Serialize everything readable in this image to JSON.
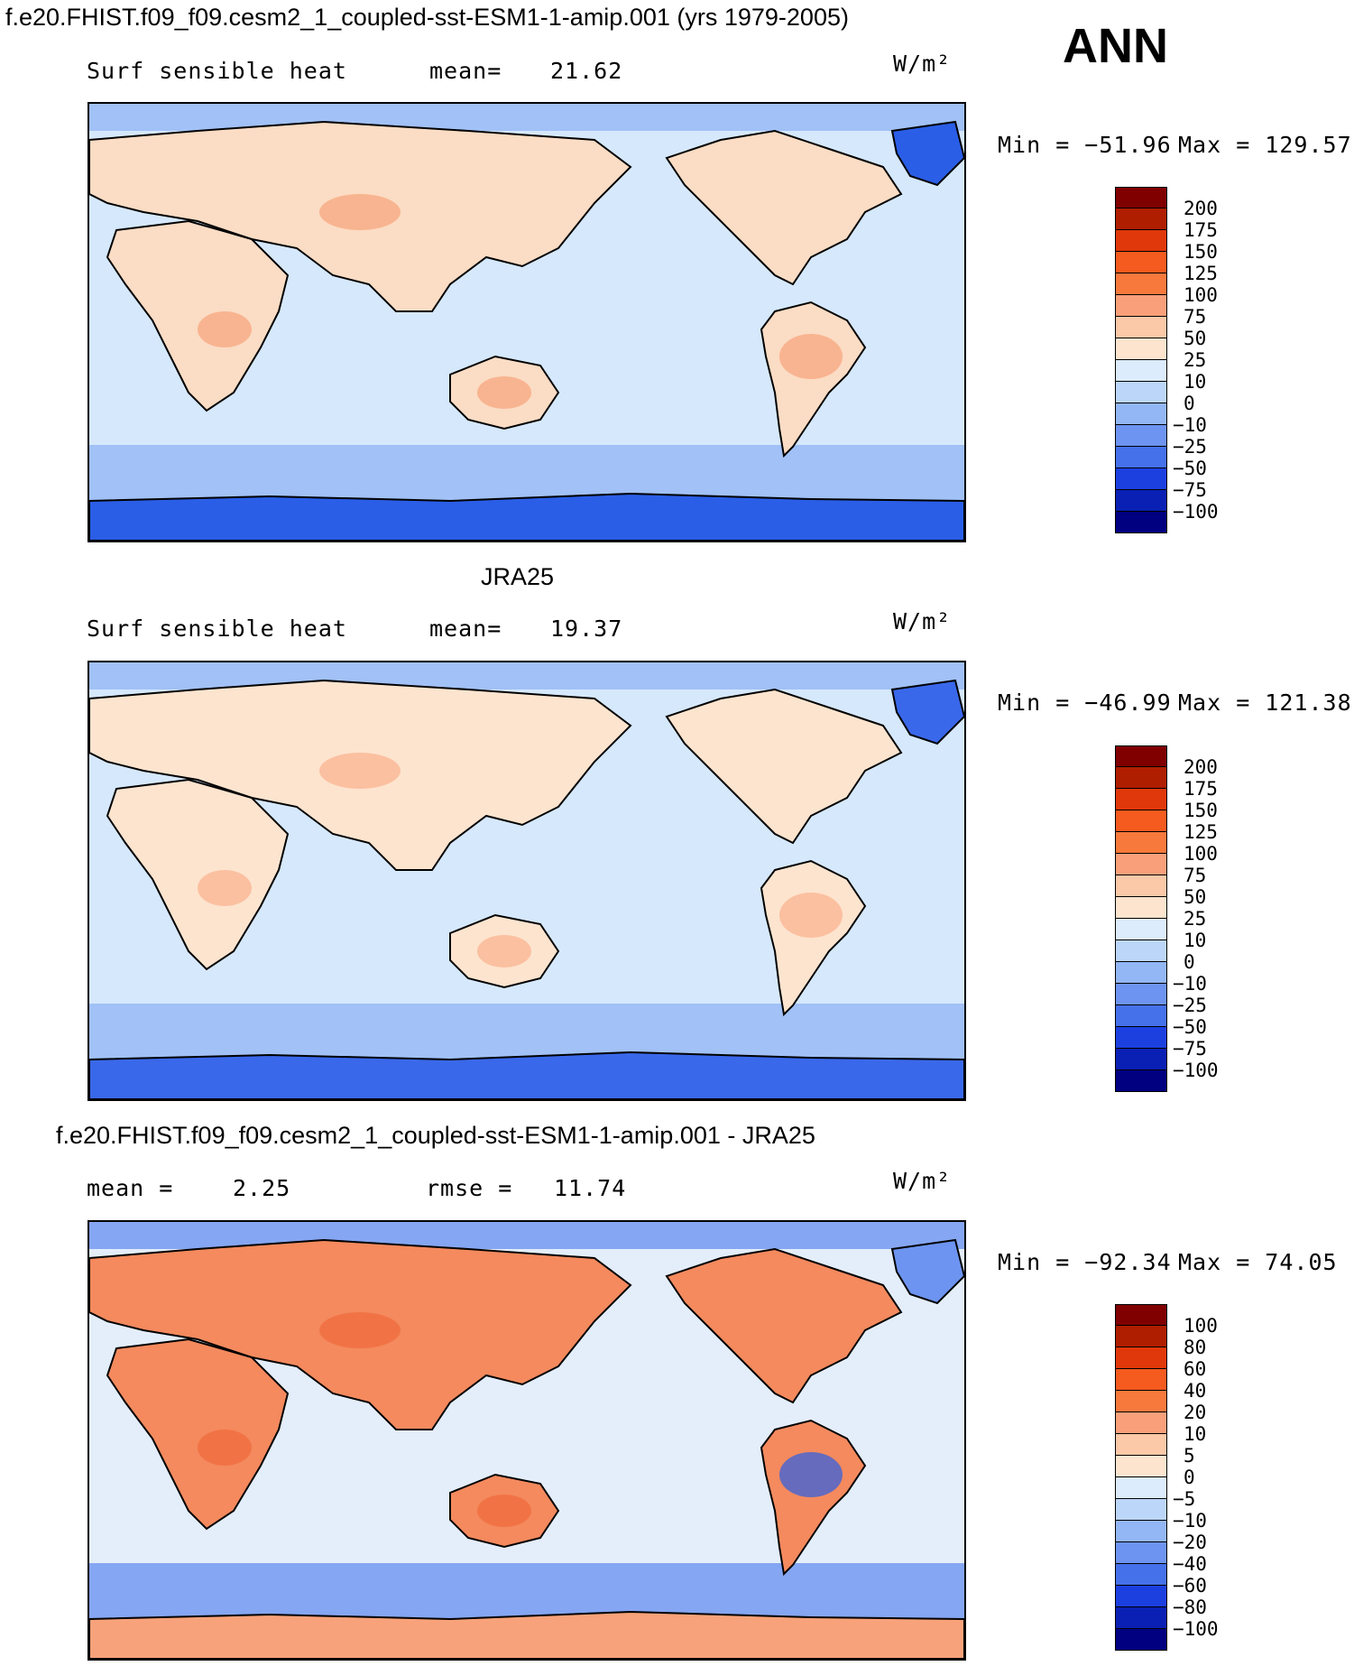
{
  "header": {
    "case_title": "f.e20.FHIST.f09_f09.cesm2_1_coupled-sst-ESM1-1-amip.001 (yrs 1979-2005)",
    "season": "ANN"
  },
  "panels": [
    {
      "title": "",
      "left_label": "Surf  sensible  heat",
      "stat_label": "mean=",
      "stat_value": "21.62",
      "stat2_label": "",
      "stat2_value": "",
      "units": "W/m²",
      "min_label": "Min  =  −51.96",
      "max_label": "Max  =  129.57",
      "colorbar": {
        "labels": [
          "200",
          "175",
          "150",
          "125",
          "100",
          "75",
          "50",
          "25",
          "10",
          "0",
          "−10",
          "−25",
          "−50",
          "−75",
          "−100"
        ],
        "colors": [
          "#800000",
          "#b01e00",
          "#e0380a",
          "#f55a1e",
          "#f7793c",
          "#f9a07a",
          "#fbc8a8",
          "#fde4cf",
          "#dcecfc",
          "#bcd6fa",
          "#93b6f5",
          "#6d94f0",
          "#4571ea",
          "#1c40e0",
          "#0a20b4",
          "#000080"
        ]
      },
      "map_colors": {
        "ocean": "#d6e8fc",
        "land": "#fbdcc4",
        "ice": "#2a5ee6",
        "cold": "#93b6f5",
        "hot": "#f7a27a"
      }
    },
    {
      "title": "JRA25",
      "left_label": "Surf  sensible  heat",
      "stat_label": "mean=",
      "stat_value": "19.37",
      "stat2_label": "",
      "stat2_value": "",
      "units": "W/m²",
      "min_label": "Min  =  −46.99",
      "max_label": "Max  =  121.38",
      "colorbar": {
        "labels": [
          "200",
          "175",
          "150",
          "125",
          "100",
          "75",
          "50",
          "25",
          "10",
          "0",
          "−10",
          "−25",
          "−50",
          "−75",
          "−100"
        ],
        "colors": [
          "#800000",
          "#b01e00",
          "#e0380a",
          "#f55a1e",
          "#f7793c",
          "#f9a07a",
          "#fbc8a8",
          "#fde4cf",
          "#dcecfc",
          "#bcd6fa",
          "#93b6f5",
          "#6d94f0",
          "#4571ea",
          "#1c40e0",
          "#0a20b4",
          "#000080"
        ]
      },
      "map_colors": {
        "ocean": "#d6e8fc",
        "land": "#fde4cf",
        "ice": "#3a68ea",
        "cold": "#93b6f5",
        "hot": "#f9b08c"
      }
    },
    {
      "title": "f.e20.FHIST.f09_f09.cesm2_1_coupled-sst-ESM1-1-amip.001 - JRA25",
      "left_label": "mean =",
      "stat_label": "",
      "stat_value": "2.25",
      "stat2_label": "rmse =",
      "stat2_value": "11.74",
      "units": "W/m²",
      "min_label": "Min  =  −92.34",
      "max_label": "Max  =   74.05",
      "colorbar": {
        "labels": [
          "100",
          "80",
          "60",
          "40",
          "20",
          "10",
          "5",
          "0",
          "−5",
          "−10",
          "−20",
          "−40",
          "−60",
          "−80",
          "−100"
        ],
        "colors": [
          "#800000",
          "#b01e00",
          "#e0380a",
          "#f55a1e",
          "#f7793c",
          "#f9a07a",
          "#fbc8a8",
          "#fde4cf",
          "#dcecfc",
          "#bcd6fa",
          "#93b6f5",
          "#6d94f0",
          "#4571ea",
          "#1c40e0",
          "#0a20b4",
          "#000080"
        ]
      },
      "map_colors": {
        "ocean": "#e4eefb",
        "land": "#f48a5e",
        "ice": "#f7a27a",
        "cold": "#6d94f0",
        "hot": "#f06a3a"
      }
    }
  ]
}
